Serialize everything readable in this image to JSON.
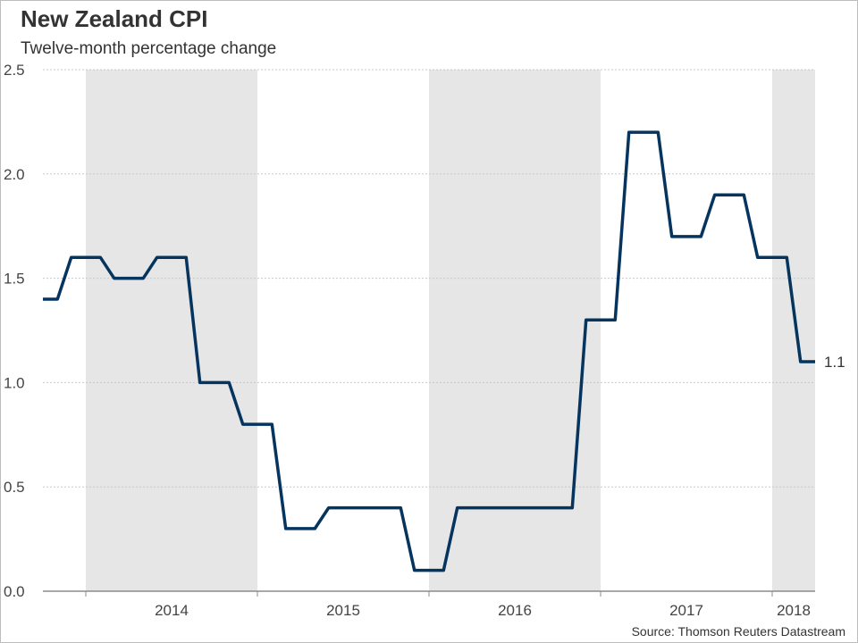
{
  "header": {
    "title": "New Zealand CPI",
    "subtitle": "Twelve-month percentage change"
  },
  "footer": {
    "source": "Source: Thomson Reuters Datastream"
  },
  "colors": {
    "line": "#05355e",
    "band": "#e6e6e6",
    "grid": "#c8c8c8",
    "axis": "#8c8c8c"
  },
  "chart_data": {
    "type": "line",
    "title": "New Zealand CPI",
    "subtitle": "Twelve-month percentage change",
    "xlabel": "",
    "ylabel": "",
    "ylim": [
      0,
      2.5
    ],
    "y_ticks": [
      "0.0",
      "0.5",
      "1.0",
      "1.5",
      "2.0",
      "2.5"
    ],
    "y_tick_values": [
      0,
      0.5,
      1.0,
      1.5,
      2.0,
      2.5
    ],
    "x_categories": [
      "2014",
      "2015",
      "2016",
      "2017",
      "2018"
    ],
    "x_range": [
      2013.75,
      2018.25
    ],
    "grid": true,
    "shaded_years": [
      "2014",
      "2016",
      "2018"
    ],
    "series": [
      {
        "name": "New Zealand CPI y/y",
        "x": [
          "2013 Q3",
          "2013 Q4",
          "2014 Q1",
          "2014 Q2",
          "2014 Q3",
          "2014 Q4",
          "2015 Q1",
          "2015 Q2",
          "2015 Q3",
          "2015 Q4",
          "2016 Q1",
          "2016 Q2",
          "2016 Q3",
          "2016 Q4",
          "2017 Q1",
          "2017 Q2",
          "2017 Q3",
          "2017 Q4",
          "2018 Q1"
        ],
        "t": [
          2013.75,
          2014.0,
          2014.25,
          2014.5,
          2014.75,
          2015.0,
          2015.25,
          2015.5,
          2015.75,
          2016.0,
          2016.25,
          2016.5,
          2016.75,
          2017.0,
          2017.25,
          2017.5,
          2017.75,
          2018.0,
          2018.25
        ],
        "values": [
          1.4,
          1.6,
          1.5,
          1.6,
          1.0,
          0.8,
          0.3,
          0.4,
          0.4,
          0.1,
          0.4,
          0.4,
          0.4,
          1.3,
          2.2,
          1.7,
          1.9,
          1.6,
          1.1
        ]
      }
    ],
    "end_label": "1.1"
  }
}
